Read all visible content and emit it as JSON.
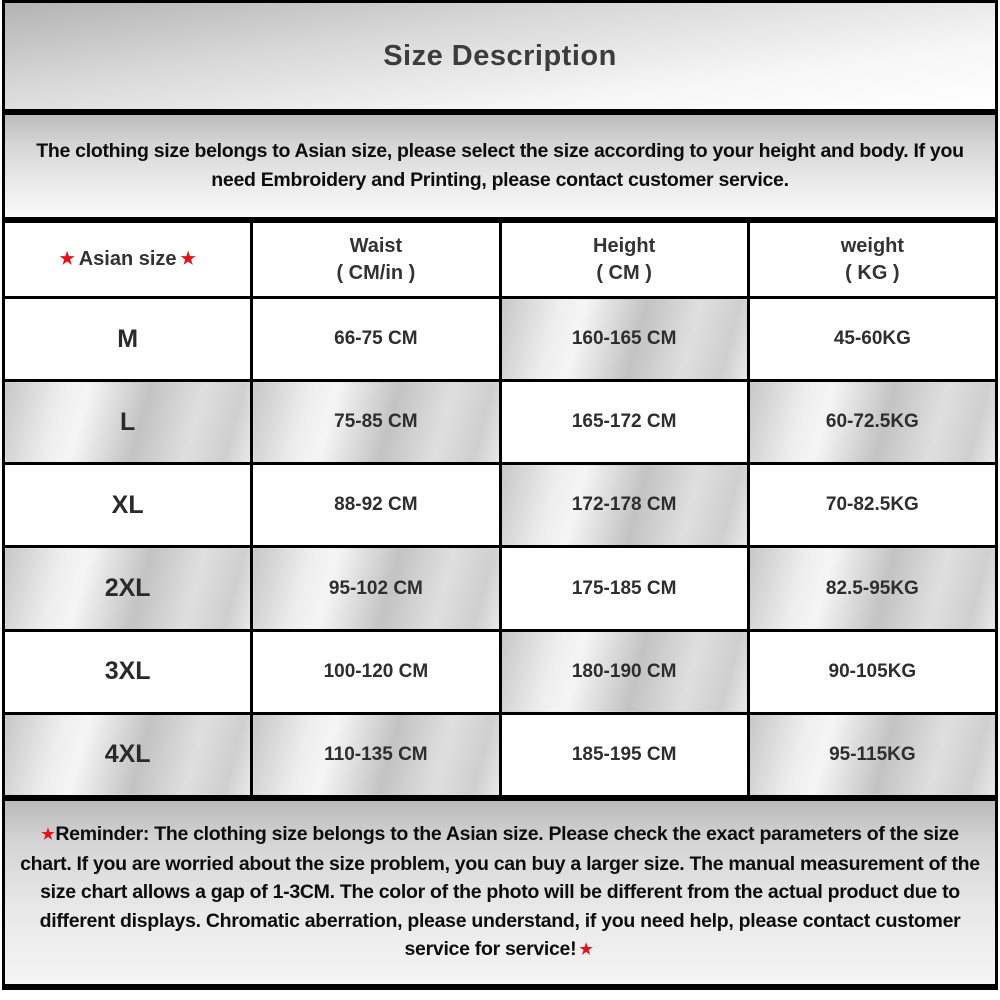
{
  "title": "Size Description",
  "notice_text": "The clothing size belongs to Asian size, please select the size according to your height and body. If you need Embroidery and Printing, please contact customer service.",
  "icons": {
    "star": "★"
  },
  "colors": {
    "star_red": "#e30f1d",
    "border_black": "#000000",
    "title_gray": "#3c3c3c"
  },
  "table": {
    "header": {
      "size_label": "Asian size",
      "waist_line1": "Waist",
      "waist_line2": "( CM/in )",
      "height_line1": "Height",
      "height_line2": "( CM )",
      "weight_line1": "weight",
      "weight_line2": "( KG )"
    },
    "rows": [
      {
        "size": "M",
        "waist": "66-75 CM",
        "height": "160-165 CM",
        "weight": "45-60KG"
      },
      {
        "size": "L",
        "waist": "75-85 CM",
        "height": "165-172 CM",
        "weight": "60-72.5KG"
      },
      {
        "size": "XL",
        "waist": "88-92 CM",
        "height": "172-178 CM",
        "weight": "70-82.5KG"
      },
      {
        "size": "2XL",
        "waist": "95-102 CM",
        "height": "175-185 CM",
        "weight": "82.5-95KG"
      },
      {
        "size": "3XL",
        "waist": "100-120 CM",
        "height": "180-190 CM",
        "weight": "90-105KG"
      },
      {
        "size": "4XL",
        "waist": "110-135 CM",
        "height": "185-195 CM",
        "weight": "95-115KG"
      }
    ]
  },
  "reminder_text": "Reminder: The clothing size belongs to the Asian size. Please check the exact parameters of the size chart. If you are worried about the size problem, you can buy a larger size. The manual measurement of the size chart allows a gap of 1-3CM. The color of the photo will be different from the actual product due to different displays. Chromatic aberration, please understand, if you need help, please contact customer service for service!"
}
